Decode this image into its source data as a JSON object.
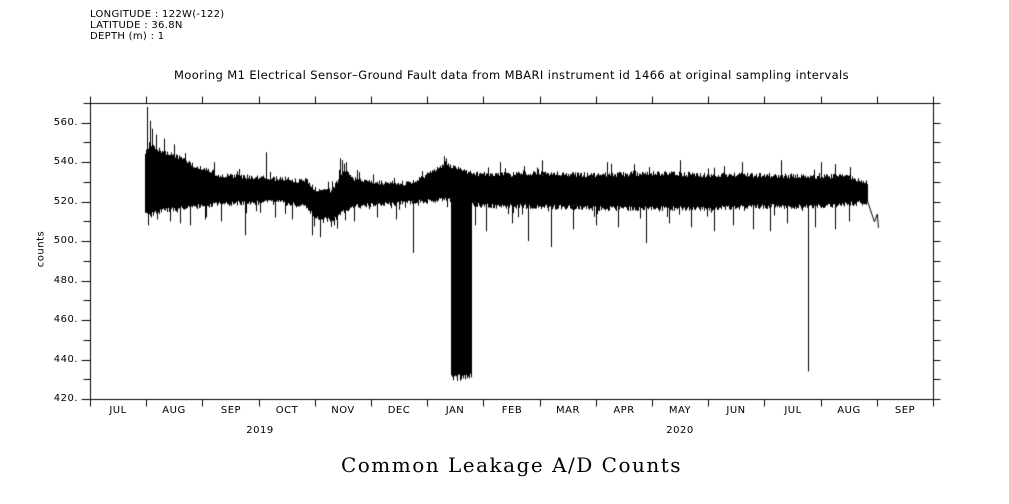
{
  "colors": {
    "foreground": "#000000",
    "background": "#ffffff"
  },
  "header": {
    "longitude": "LONGITUDE : 122W(-122)",
    "latitude": "LATITUDE : 36.8N",
    "depth": "DEPTH (m) : 1"
  },
  "title": "Mooring M1 Electrical Sensor–Ground Fault data from MBARI instrument id 1466 at original sampling intervals",
  "figure_caption": "Common Leakage A/D Counts",
  "chart_data": {
    "type": "line",
    "title": "Mooring M1 Electrical Sensor–Ground Fault data from MBARI instrument id 1466 at original sampling intervals",
    "subtitle": "Common Leakage A/D Counts",
    "ylabel": "counts",
    "xlabel": "",
    "ylim": [
      420,
      570
    ],
    "grid": false,
    "legend": "none",
    "y_major_ticks": [
      {
        "v": 560,
        "label": "560."
      },
      {
        "v": 540,
        "label": "540."
      },
      {
        "v": 520,
        "label": "520."
      },
      {
        "v": 500,
        "label": "500."
      },
      {
        "v": 480,
        "label": "480."
      },
      {
        "v": 460,
        "label": "460."
      },
      {
        "v": 440,
        "label": "440."
      },
      {
        "v": 420,
        "label": "420."
      }
    ],
    "y_minor_step": 10,
    "x_month_labels": [
      "JUL",
      "AUG",
      "SEP",
      "OCT",
      "NOV",
      "DEC",
      "JAN",
      "FEB",
      "MAR",
      "APR",
      "MAY",
      "JUN",
      "JUL",
      "AUG",
      "SEP"
    ],
    "year_labels": [
      {
        "label": "2019",
        "month_pos": 3.02
      },
      {
        "label": "2020",
        "month_pos": 10.5
      }
    ],
    "x_unit": "months since 2019-07-01, axis spans JUL 2019 to OCT 2020 tick",
    "series_name": "common leakage A/D counts",
    "data_start_m": 0.979,
    "data_end_m": 13.82,
    "band_envelope": [
      [
        0.979,
        545,
        514
      ],
      [
        1.05,
        549,
        513
      ],
      [
        1.3,
        546,
        515
      ],
      [
        1.6,
        543,
        516
      ],
      [
        1.9,
        538,
        517
      ],
      [
        2.3,
        534,
        518
      ],
      [
        2.8,
        533,
        519
      ],
      [
        3.4,
        532,
        519
      ],
      [
        3.85,
        531,
        517
      ],
      [
        4.0,
        527,
        511
      ],
      [
        4.3,
        526,
        510
      ],
      [
        4.5,
        537,
        514
      ],
      [
        4.7,
        532,
        517
      ],
      [
        5.2,
        530,
        518
      ],
      [
        5.7,
        530,
        519
      ],
      [
        6.1,
        536,
        520
      ],
      [
        6.35,
        540,
        521
      ],
      [
        6.43,
        538,
        520
      ],
      [
        6.78,
        535,
        518
      ],
      [
        7.2,
        534,
        517
      ],
      [
        8.0,
        535,
        517
      ],
      [
        9.0,
        534,
        516
      ],
      [
        10.0,
        535,
        516
      ],
      [
        11.0,
        534,
        516
      ],
      [
        12.0,
        534,
        517
      ],
      [
        13.0,
        533,
        517
      ],
      [
        13.45,
        534,
        518
      ],
      [
        13.82,
        530,
        519
      ]
    ],
    "block_event": {
      "m0": 6.43,
      "m1": 6.78,
      "top": 536,
      "bottom": 429,
      "note": "full-scale rapid oscillation down to ~429 counts, mid-January 2020"
    },
    "spikes_up": [
      [
        1.014,
        568
      ],
      [
        1.06,
        561
      ],
      [
        1.1,
        557
      ],
      [
        1.18,
        554
      ],
      [
        1.32,
        552
      ],
      [
        1.5,
        549
      ],
      [
        2.2,
        540
      ],
      [
        3.13,
        545
      ],
      [
        4.45,
        542
      ],
      [
        4.55,
        540
      ],
      [
        6.3,
        543
      ],
      [
        7.3,
        540
      ],
      [
        8.05,
        541
      ],
      [
        9.2,
        540
      ],
      [
        10.5,
        541
      ],
      [
        11.6,
        540
      ],
      [
        12.3,
        541
      ],
      [
        13.0,
        540
      ],
      [
        13.26,
        539
      ]
    ],
    "spikes_down": [
      [
        1.03,
        508
      ],
      [
        1.08,
        512
      ],
      [
        1.2,
        511
      ],
      [
        1.42,
        510
      ],
      [
        1.6,
        509
      ],
      [
        1.78,
        508
      ],
      [
        2.05,
        511
      ],
      [
        2.33,
        510
      ],
      [
        2.76,
        503
      ],
      [
        3.3,
        512
      ],
      [
        3.6,
        511
      ],
      [
        3.95,
        503
      ],
      [
        4.1,
        502
      ],
      [
        4.35,
        508
      ],
      [
        4.7,
        510
      ],
      [
        5.1,
        512
      ],
      [
        5.45,
        511
      ],
      [
        5.75,
        494
      ],
      [
        6.85,
        508
      ],
      [
        7.05,
        505
      ],
      [
        7.5,
        509
      ],
      [
        7.8,
        500
      ],
      [
        8.2,
        497
      ],
      [
        8.6,
        506
      ],
      [
        9.0,
        508
      ],
      [
        9.4,
        507
      ],
      [
        9.9,
        499
      ],
      [
        10.3,
        509
      ],
      [
        10.7,
        507
      ],
      [
        11.1,
        505
      ],
      [
        11.45,
        508
      ],
      [
        11.8,
        506
      ],
      [
        12.1,
        505
      ],
      [
        12.4,
        509
      ],
      [
        12.78,
        434
      ],
      [
        12.9,
        507
      ],
      [
        13.25,
        506
      ],
      [
        13.5,
        510
      ]
    ],
    "tail_polyline": [
      [
        13.82,
        521
      ],
      [
        13.95,
        510
      ],
      [
        14.0,
        514
      ],
      [
        14.02,
        507
      ]
    ]
  }
}
